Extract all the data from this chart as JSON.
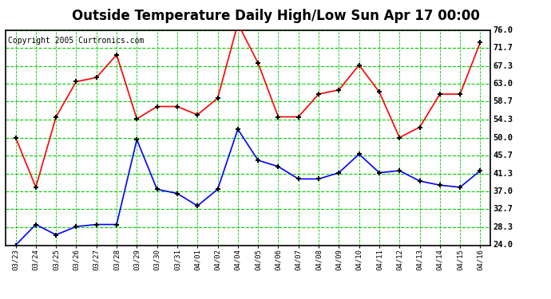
{
  "title": "Outside Temperature Daily High/Low Sun Apr 17 00:00",
  "copyright": "Copyright 2005 Curtronics.com",
  "x_labels": [
    "03/23",
    "03/24",
    "03/25",
    "03/26",
    "03/27",
    "03/28",
    "03/29",
    "03/30",
    "03/31",
    "04/01",
    "04/02",
    "04/04",
    "04/05",
    "04/06",
    "04/07",
    "04/08",
    "04/09",
    "04/10",
    "04/11",
    "04/12",
    "04/13",
    "04/14",
    "04/15",
    "04/16"
  ],
  "high_temps": [
    50.0,
    38.0,
    55.0,
    63.5,
    64.5,
    70.0,
    54.5,
    57.5,
    57.5,
    55.5,
    59.5,
    77.5,
    68.0,
    55.0,
    55.0,
    60.5,
    61.5,
    67.5,
    61.0,
    50.0,
    52.5,
    60.5,
    60.5,
    73.0
  ],
  "low_temps": [
    24.0,
    29.0,
    26.5,
    28.5,
    29.0,
    29.0,
    49.5,
    37.5,
    36.5,
    33.5,
    37.5,
    52.0,
    44.5,
    43.0,
    40.0,
    40.0,
    41.5,
    46.0,
    41.5,
    42.0,
    39.5,
    38.5,
    38.0,
    42.0
  ],
  "high_color": "#ff0000",
  "low_color": "#0000ff",
  "bg_color": "#ffffff",
  "plot_bg_color": "#ffffff",
  "grid_color": "#00cc00",
  "y_ticks": [
    24.0,
    28.3,
    32.7,
    37.0,
    41.3,
    45.7,
    50.0,
    54.3,
    58.7,
    63.0,
    67.3,
    71.7,
    76.0
  ],
  "y_min": 24.0,
  "y_max": 76.0,
  "title_fontsize": 12,
  "copyright_fontsize": 7,
  "marker": "+",
  "marker_color": "#000000",
  "marker_size": 5,
  "line_width": 1.2
}
